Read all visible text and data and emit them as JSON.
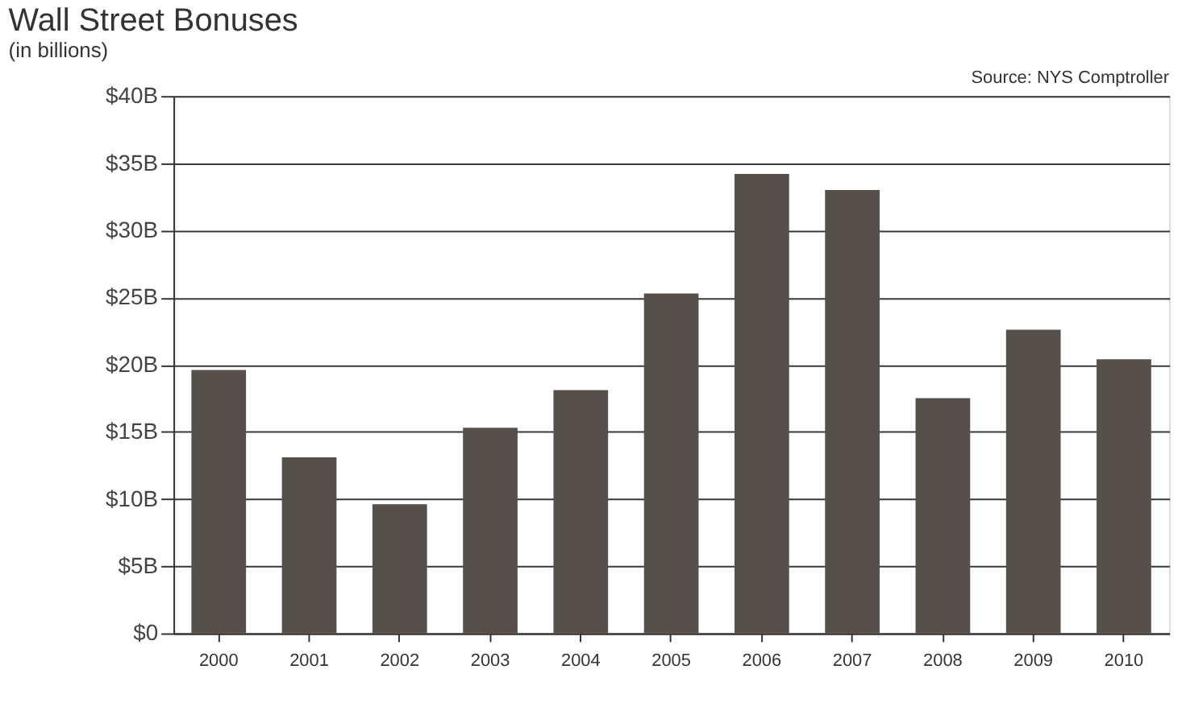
{
  "chart_data": {
    "type": "bar",
    "title": "Wall Street Bonuses",
    "subtitle": "(in billions)",
    "annotations": [
      "Source: NYS Comptroller"
    ],
    "categories": [
      "2000",
      "2001",
      "2002",
      "2003",
      "2004",
      "2005",
      "2006",
      "2007",
      "2008",
      "2009",
      "2010"
    ],
    "values": [
      19.6,
      13.1,
      9.6,
      15.3,
      18.1,
      25.3,
      34.2,
      33.0,
      17.5,
      22.6,
      20.4
    ],
    "color": "#574f4a",
    "ylim": [
      0,
      40
    ],
    "yticks": [
      {
        "value": 0,
        "label": "$0"
      },
      {
        "value": 5,
        "label": "$5B"
      },
      {
        "value": 10,
        "label": "$10B"
      },
      {
        "value": 15,
        "label": "$15B"
      },
      {
        "value": 20,
        "label": "$20B"
      },
      {
        "value": 25,
        "label": "$25B"
      },
      {
        "value": 30,
        "label": "$30B"
      },
      {
        "value": 35,
        "label": "$35B"
      },
      {
        "value": 40,
        "label": "$40B"
      }
    ],
    "grid": "y"
  }
}
